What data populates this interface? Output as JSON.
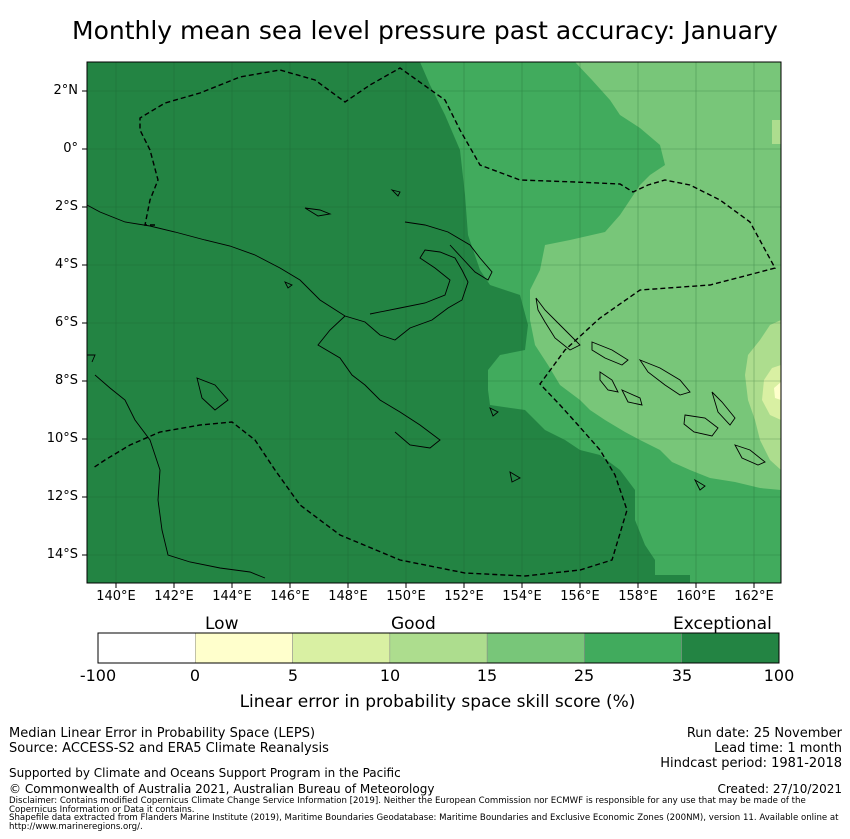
{
  "title": "Monthly mean sea level pressure past accuracy: January",
  "map": {
    "latitude_labels": [
      "2°N",
      "0°",
      "2°S",
      "4°S",
      "6°S",
      "8°S",
      "10°S",
      "12°S",
      "14°S"
    ],
    "longitude_labels": [
      "140°E",
      "142°E",
      "144°E",
      "146°E",
      "148°E",
      "150°E",
      "152°E",
      "154°E",
      "156°E",
      "158°E",
      "160°E",
      "162°E"
    ]
  },
  "colorbar": {
    "category_labels": [
      "Low",
      "Good",
      "Exceptional"
    ],
    "ticks": [
      "-100",
      "0",
      "5",
      "10",
      "15",
      "25",
      "35",
      "100"
    ],
    "colors": [
      "#ffffff",
      "#ffffcc",
      "#d9f0a3",
      "#addd8e",
      "#78c679",
      "#41ab5d",
      "#238443"
    ],
    "title": "Linear error in probability space skill score (%)"
  },
  "footer": {
    "method": "Median Linear Error in Probability Space (LEPS)",
    "source": "Source: ACCESS-S2 and ERA5 Climate Reanalysis",
    "support": "Supported by Climate and Oceans Support Program in the Pacific",
    "copyright": "© Commonwealth of Australia 2021, Australian Bureau of Meteorology",
    "run_date": "Run date: 25 November",
    "lead_time": "Lead time: 1 month",
    "hindcast": "Hindcast period: 1981-2018",
    "created": "Created: 27/10/2021",
    "disclaimer": "Disclaimer: Contains modified Copernicus Climate Change Service Information [2019]. Neither the European Commission nor ECMWF is responsible for any use that may be made of the Copernicus Information or Data it contains.",
    "shapefile": "Shapefile data extracted from Flanders Marine Institute (2019), Maritime Boundaries Geodatabase: Maritime Boundaries and Exclusive Economic Zones (200NM), version 11. Available online at http://www.marineregions.org/."
  }
}
